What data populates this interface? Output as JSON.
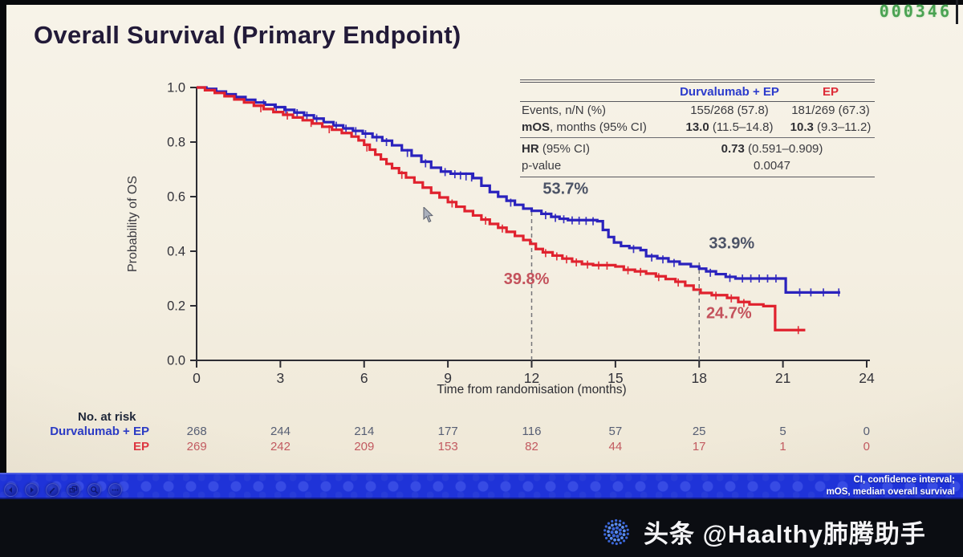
{
  "frame": {
    "counter": "000346"
  },
  "slide": {
    "title": "Overall Survival (Primary Endpoint)"
  },
  "stats_table": {
    "col1": "Durvalumab + EP",
    "col2": "EP",
    "events": {
      "label": "Events, n/N (%)",
      "v1": "155/268 (57.8)",
      "v2": "181/269 (67.3)"
    },
    "mos": {
      "label_b": "mOS",
      "label_r": ", months (95% CI)",
      "v1_b": "13.0",
      "v1_r": " (11.5–14.8)",
      "v2_b": "10.3",
      "v2_r": " (9.3–11.2)"
    },
    "hr": {
      "label_b": "HR",
      "label_r": " (95% CI)",
      "v_b": "0.73",
      "v_r": " (0.591–0.909)"
    },
    "p": {
      "label": "p-value",
      "value": "0.0047"
    }
  },
  "chart_data": {
    "type": "line",
    "subtype": "kaplan_meier_step",
    "title": "Overall Survival (Primary Endpoint)",
    "xlabel": "Time from randomisation (months)",
    "ylabel": "Probability of OS",
    "xlim": [
      0,
      24
    ],
    "ylim": [
      0.0,
      1.0
    ],
    "xticks": [
      0,
      3,
      6,
      9,
      12,
      15,
      18,
      21,
      24
    ],
    "yticks": [
      "0.0",
      "0.2",
      "0.4",
      "0.6",
      "0.8",
      "1.0"
    ],
    "grid": false,
    "legend_position": "none",
    "axis_color": "#2d2d33",
    "reference_lines": [
      {
        "x": 12,
        "to_y": 0.56,
        "style": "dashed"
      },
      {
        "x": 18,
        "to_y": 0.37,
        "style": "dashed"
      }
    ],
    "annotations": [
      {
        "text": "53.7%",
        "x": 12.4,
        "y": 0.61,
        "color": "#4c5366"
      },
      {
        "text": "33.9%",
        "x": 18.35,
        "y": 0.41,
        "color": "#4c5366"
      },
      {
        "text": "39.8%",
        "x": 11.0,
        "y": 0.28,
        "color": "#c4525c"
      },
      {
        "text": "24.7%",
        "x": 18.25,
        "y": 0.155,
        "color": "#c4525c"
      }
    ],
    "series": [
      {
        "name": "Durvalumab + EP",
        "color": "#2a22bd",
        "milestones": {
          "os_12mo": "53.7%",
          "os_18mo": "33.9%"
        },
        "steps": [
          [
            0,
            1.0
          ],
          [
            0.35,
            0.995
          ],
          [
            0.7,
            0.985
          ],
          [
            1.05,
            0.975
          ],
          [
            1.4,
            0.965
          ],
          [
            1.75,
            0.955
          ],
          [
            2.1,
            0.945
          ],
          [
            2.45,
            0.937
          ],
          [
            2.8,
            0.928
          ],
          [
            3.15,
            0.918
          ],
          [
            3.5,
            0.908
          ],
          [
            3.85,
            0.898
          ],
          [
            4.2,
            0.886
          ],
          [
            4.55,
            0.873
          ],
          [
            4.9,
            0.861
          ],
          [
            5.25,
            0.85
          ],
          [
            5.6,
            0.841
          ],
          [
            5.95,
            0.831
          ],
          [
            6.3,
            0.818
          ],
          [
            6.65,
            0.805
          ],
          [
            7.0,
            0.788
          ],
          [
            7.35,
            0.77
          ],
          [
            7.7,
            0.75
          ],
          [
            8.05,
            0.728
          ],
          [
            8.4,
            0.706
          ],
          [
            8.75,
            0.692
          ],
          [
            9.1,
            0.684
          ],
          [
            9.9,
            0.668
          ],
          [
            10.2,
            0.64
          ],
          [
            10.5,
            0.617
          ],
          [
            10.8,
            0.6
          ],
          [
            11.1,
            0.585
          ],
          [
            11.4,
            0.57
          ],
          [
            11.7,
            0.556
          ],
          [
            12.0,
            0.548
          ],
          [
            12.35,
            0.537
          ],
          [
            12.7,
            0.526
          ],
          [
            13.0,
            0.519
          ],
          [
            13.3,
            0.514
          ],
          [
            14.35,
            0.51
          ],
          [
            14.55,
            0.478
          ],
          [
            14.75,
            0.452
          ],
          [
            14.95,
            0.432
          ],
          [
            15.2,
            0.419
          ],
          [
            15.5,
            0.412
          ],
          [
            15.9,
            0.404
          ],
          [
            16.1,
            0.382
          ],
          [
            16.5,
            0.374
          ],
          [
            16.9,
            0.362
          ],
          [
            17.3,
            0.353
          ],
          [
            17.7,
            0.344
          ],
          [
            18.0,
            0.336
          ],
          [
            18.25,
            0.326
          ],
          [
            18.6,
            0.316
          ],
          [
            18.95,
            0.306
          ],
          [
            19.3,
            0.3
          ],
          [
            21.05,
            0.3
          ],
          [
            21.1,
            0.249
          ],
          [
            23.05,
            0.249
          ]
        ],
        "censors": [
          [
            2.4,
            0.94
          ],
          [
            2.85,
            0.927
          ],
          [
            3.2,
            0.917
          ],
          [
            3.6,
            0.906
          ],
          [
            3.95,
            0.897
          ],
          [
            4.3,
            0.884
          ],
          [
            5.0,
            0.86
          ],
          [
            5.35,
            0.849
          ],
          [
            5.7,
            0.84
          ],
          [
            6.05,
            0.829
          ],
          [
            6.45,
            0.816
          ],
          [
            6.8,
            0.8
          ],
          [
            7.55,
            0.76
          ],
          [
            8.2,
            0.722
          ],
          [
            8.9,
            0.69
          ],
          [
            9.25,
            0.682
          ],
          [
            9.45,
            0.678
          ],
          [
            9.65,
            0.674
          ],
          [
            9.85,
            0.67
          ],
          [
            11.25,
            0.578
          ],
          [
            12.5,
            0.532
          ],
          [
            12.85,
            0.522
          ],
          [
            13.15,
            0.517
          ],
          [
            13.45,
            0.513
          ],
          [
            13.7,
            0.512
          ],
          [
            13.95,
            0.511
          ],
          [
            14.2,
            0.51
          ],
          [
            15.65,
            0.408
          ],
          [
            16.3,
            0.377
          ],
          [
            16.7,
            0.37
          ],
          [
            17.1,
            0.357
          ],
          [
            18.4,
            0.321
          ],
          [
            19.1,
            0.302
          ],
          [
            19.55,
            0.3
          ],
          [
            19.85,
            0.3
          ],
          [
            20.15,
            0.3
          ],
          [
            20.45,
            0.3
          ],
          [
            20.75,
            0.3
          ],
          [
            21.6,
            0.249
          ],
          [
            22.0,
            0.249
          ],
          [
            22.45,
            0.249
          ],
          [
            23.0,
            0.249
          ]
        ]
      },
      {
        "name": "EP",
        "color": "#e0222e",
        "milestones": {
          "os_12mo": "39.8%",
          "os_18mo": "24.7%"
        },
        "steps": [
          [
            0,
            1.0
          ],
          [
            0.3,
            0.99
          ],
          [
            0.65,
            0.98
          ],
          [
            1.0,
            0.968
          ],
          [
            1.35,
            0.956
          ],
          [
            1.7,
            0.945
          ],
          [
            2.05,
            0.933
          ],
          [
            2.4,
            0.921
          ],
          [
            2.75,
            0.91
          ],
          [
            3.1,
            0.9
          ],
          [
            3.45,
            0.89
          ],
          [
            3.8,
            0.88
          ],
          [
            4.15,
            0.868
          ],
          [
            4.5,
            0.856
          ],
          [
            4.85,
            0.845
          ],
          [
            5.2,
            0.833
          ],
          [
            5.55,
            0.82
          ],
          [
            5.8,
            0.806
          ],
          [
            6.0,
            0.79
          ],
          [
            6.2,
            0.772
          ],
          [
            6.4,
            0.754
          ],
          [
            6.6,
            0.737
          ],
          [
            6.8,
            0.72
          ],
          [
            7.0,
            0.704
          ],
          [
            7.25,
            0.687
          ],
          [
            7.5,
            0.67
          ],
          [
            7.8,
            0.652
          ],
          [
            8.1,
            0.633
          ],
          [
            8.4,
            0.614
          ],
          [
            8.7,
            0.597
          ],
          [
            9.0,
            0.58
          ],
          [
            9.3,
            0.563
          ],
          [
            9.6,
            0.547
          ],
          [
            9.9,
            0.531
          ],
          [
            10.2,
            0.516
          ],
          [
            10.5,
            0.5
          ],
          [
            10.8,
            0.486
          ],
          [
            11.1,
            0.471
          ],
          [
            11.4,
            0.456
          ],
          [
            11.7,
            0.441
          ],
          [
            11.95,
            0.427
          ],
          [
            12.15,
            0.408
          ],
          [
            12.4,
            0.396
          ],
          [
            12.75,
            0.384
          ],
          [
            13.1,
            0.373
          ],
          [
            13.45,
            0.362
          ],
          [
            13.8,
            0.353
          ],
          [
            14.2,
            0.349
          ],
          [
            15.0,
            0.344
          ],
          [
            15.3,
            0.332
          ],
          [
            15.7,
            0.326
          ],
          [
            16.1,
            0.318
          ],
          [
            16.45,
            0.308
          ],
          [
            16.8,
            0.298
          ],
          [
            17.15,
            0.288
          ],
          [
            17.5,
            0.274
          ],
          [
            17.8,
            0.259
          ],
          [
            18.05,
            0.247
          ],
          [
            18.45,
            0.239
          ],
          [
            19.0,
            0.229
          ],
          [
            19.4,
            0.214
          ],
          [
            19.8,
            0.205
          ],
          [
            20.3,
            0.199
          ],
          [
            20.72,
            0.111
          ],
          [
            21.8,
            0.111
          ]
        ],
        "censors": [
          [
            2.3,
            0.924
          ],
          [
            3.25,
            0.897
          ],
          [
            4.1,
            0.87
          ],
          [
            4.75,
            0.847
          ],
          [
            6.1,
            0.78
          ],
          [
            7.35,
            0.68
          ],
          [
            9.15,
            0.575
          ],
          [
            10.35,
            0.512
          ],
          [
            10.95,
            0.483
          ],
          [
            12.5,
            0.393
          ],
          [
            12.9,
            0.381
          ],
          [
            13.25,
            0.37
          ],
          [
            13.6,
            0.359
          ],
          [
            14.0,
            0.351
          ],
          [
            14.4,
            0.348
          ],
          [
            14.7,
            0.347
          ],
          [
            15.45,
            0.33
          ],
          [
            15.9,
            0.324
          ],
          [
            16.55,
            0.305
          ],
          [
            17.25,
            0.285
          ],
          [
            18.6,
            0.237
          ],
          [
            19.15,
            0.227
          ],
          [
            19.6,
            0.21
          ],
          [
            21.55,
            0.111
          ]
        ]
      }
    ]
  },
  "risk_table": {
    "header": "No. at risk",
    "timepoints": [
      0,
      3,
      6,
      9,
      12,
      15,
      18,
      21,
      24
    ],
    "rows": [
      {
        "label": "Durvalumab + EP",
        "label_color": "#2b3bc4",
        "num_color": "#565e73",
        "values": [
          "268",
          "244",
          "214",
          "177",
          "116",
          "57",
          "25",
          "5",
          "0"
        ]
      },
      {
        "label": "EP",
        "label_color": "#dd3640",
        "num_color": "#c25a60",
        "values": [
          "269",
          "242",
          "209",
          "153",
          "82",
          "44",
          "17",
          "1",
          "0"
        ]
      }
    ]
  },
  "footer": {
    "line1": "CI, confidence interval;",
    "line2": "mOS, median overall survival"
  },
  "watermark": {
    "text": "头条 @Haalthy肺腾助手"
  }
}
